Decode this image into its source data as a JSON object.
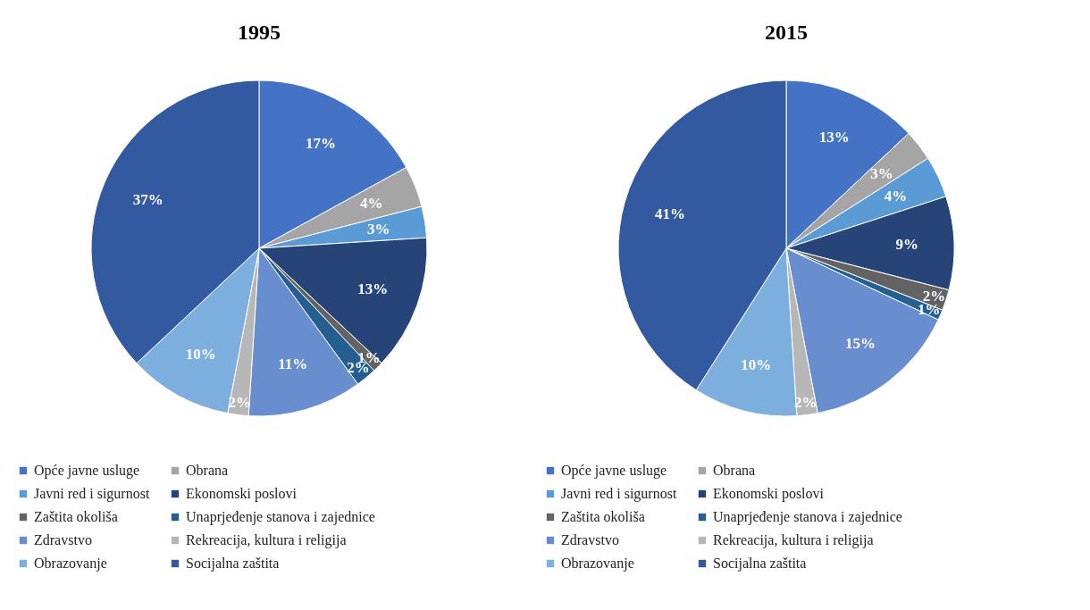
{
  "chart_data": [
    {
      "type": "pie",
      "title": "1995",
      "categories": [
        "Opće javne usluge",
        "Obrana",
        "Javni red i sigurnost",
        "Ekonomski poslovi",
        "Zaštita okoliša",
        "Unaprjeđenje stanova i zajednice",
        "Zdravstvo",
        "Rekreacija, kultura i religija",
        "Obrazovanje",
        "Socijalna zaštita"
      ],
      "values": [
        17,
        4,
        3,
        13,
        1,
        2,
        11,
        2,
        10,
        37
      ],
      "value_labels": [
        "17%",
        "4%",
        "3%",
        "13%",
        "1%",
        "2%",
        "11%",
        "2%",
        "10%",
        "37%"
      ],
      "colors": [
        "#4472c4",
        "#a5a5a5",
        "#5b9bd5",
        "#264478",
        "#636363",
        "#255e91",
        "#698ed0",
        "#b7b7b7",
        "#7cafdd",
        "#335aa1"
      ],
      "legend": "bottom"
    },
    {
      "type": "pie",
      "title": "2015",
      "categories": [
        "Opće javne usluge",
        "Obrana",
        "Javni red i sigurnost",
        "Ekonomski poslovi",
        "Zaštita okoliša",
        "Unaprjeđenje stanova i zajednice",
        "Zdravstvo",
        "Rekreacija, kultura i religija",
        "Obrazovanje",
        "Socijalna zaštita"
      ],
      "values": [
        13,
        3,
        4,
        9,
        2,
        1,
        15,
        2,
        10,
        41
      ],
      "value_labels": [
        "13%",
        "3%",
        "4%",
        "9%",
        "2%",
        "1%",
        "15%",
        "2%",
        "10%",
        "41%"
      ],
      "colors": [
        "#4472c4",
        "#a5a5a5",
        "#5b9bd5",
        "#264478",
        "#636363",
        "#255e91",
        "#698ed0",
        "#b7b7b7",
        "#7cafdd",
        "#335aa1"
      ],
      "legend": "bottom"
    }
  ]
}
